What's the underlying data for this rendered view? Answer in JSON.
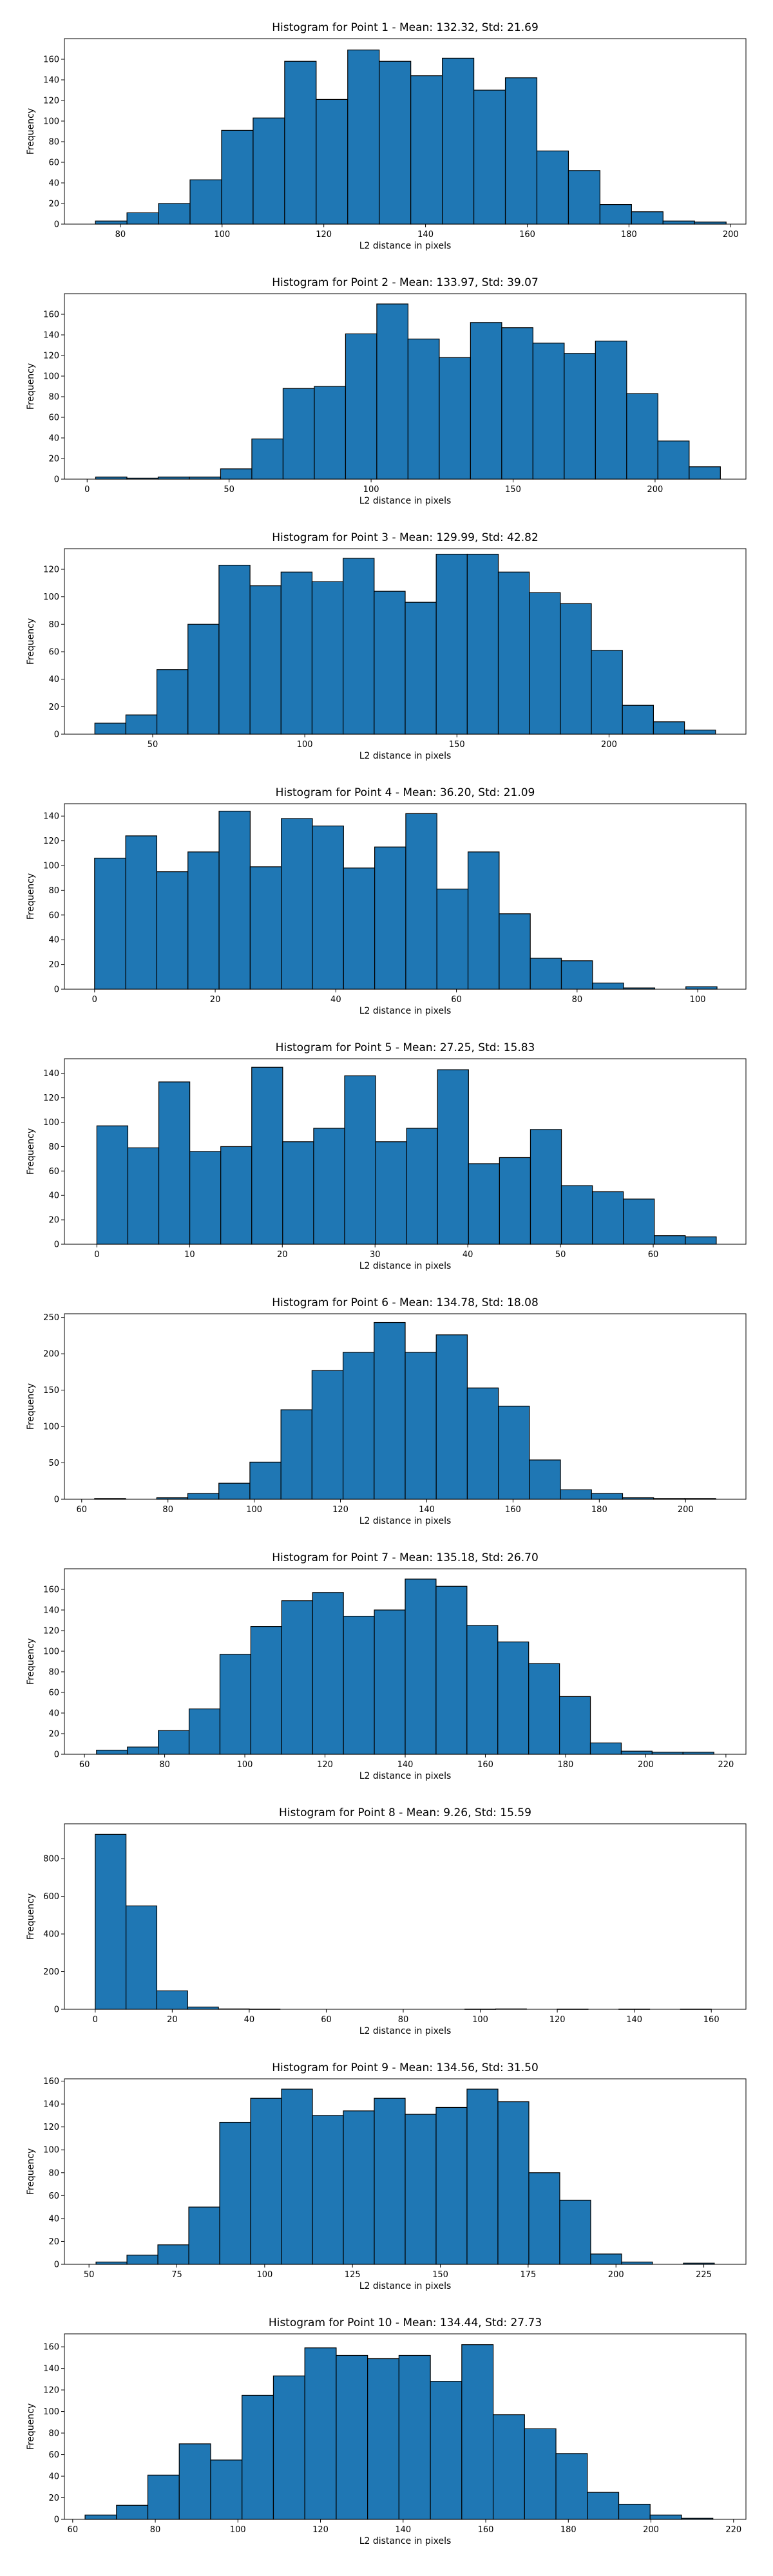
{
  "chart_data": [
    {
      "type": "bar",
      "title": "Histogram for Point 1 - Mean: 132.32, Std: 21.69",
      "xlabel": "L2 distance in pixels",
      "ylabel": "Frequency",
      "bar_color": "#1f77b4",
      "edge_color": "#000000",
      "xlim": [
        69,
        203
      ],
      "ylim": [
        0,
        180
      ],
      "xticks": [
        80,
        100,
        120,
        140,
        160,
        180,
        200
      ],
      "yticks": [
        0,
        20,
        40,
        60,
        80,
        100,
        120,
        140,
        160
      ],
      "bins": [
        [
          75.1,
          81.3,
          3
        ],
        [
          81.3,
          87.5,
          11
        ],
        [
          87.5,
          93.7,
          20
        ],
        [
          93.7,
          99.9,
          43
        ],
        [
          99.9,
          106.1,
          91
        ],
        [
          106.1,
          112.3,
          103
        ],
        [
          112.3,
          118.5,
          158
        ],
        [
          118.5,
          124.7,
          121
        ],
        [
          124.7,
          130.9,
          169
        ],
        [
          130.9,
          137.1,
          158
        ],
        [
          137.1,
          143.3,
          144
        ],
        [
          143.3,
          149.5,
          161
        ],
        [
          149.5,
          155.7,
          130
        ],
        [
          155.7,
          161.9,
          142
        ],
        [
          161.9,
          168.1,
          71
        ],
        [
          168.1,
          174.3,
          52
        ],
        [
          174.3,
          180.5,
          19
        ],
        [
          180.5,
          186.7,
          12
        ],
        [
          186.7,
          192.9,
          3
        ],
        [
          192.9,
          199.1,
          2
        ]
      ]
    },
    {
      "type": "bar",
      "title": "Histogram for Point 2 - Mean: 133.97, Std: 39.07",
      "xlabel": "L2 distance in pixels",
      "ylabel": "Frequency",
      "bar_color": "#1f77b4",
      "edge_color": "#000000",
      "xlim": [
        -8,
        232
      ],
      "ylim": [
        0,
        180
      ],
      "xticks": [
        0,
        50,
        100,
        150,
        200
      ],
      "yticks": [
        0,
        20,
        40,
        60,
        80,
        100,
        120,
        140,
        160
      ],
      "bins": [
        [
          3,
          14,
          2
        ],
        [
          14,
          25,
          1
        ],
        [
          25,
          36,
          2
        ],
        [
          36,
          47,
          2
        ],
        [
          47,
          58,
          10
        ],
        [
          58,
          69,
          39
        ],
        [
          69,
          80,
          88
        ],
        [
          80,
          91,
          90
        ],
        [
          91,
          102,
          141
        ],
        [
          102,
          113,
          170
        ],
        [
          113,
          124,
          136
        ],
        [
          124,
          135,
          118
        ],
        [
          135,
          146,
          152
        ],
        [
          146,
          157,
          147
        ],
        [
          157,
          168,
          132
        ],
        [
          168,
          179,
          122
        ],
        [
          179,
          190,
          134
        ],
        [
          190,
          201,
          83
        ],
        [
          201,
          212,
          37
        ],
        [
          212,
          223,
          12
        ]
      ]
    },
    {
      "type": "bar",
      "title": "Histogram for Point 3 - Mean: 129.99, Std: 42.82",
      "xlabel": "L2 distance in pixels",
      "ylabel": "Frequency",
      "bar_color": "#1f77b4",
      "edge_color": "#000000",
      "xlim": [
        21,
        245
      ],
      "ylim": [
        0,
        135
      ],
      "xticks": [
        50,
        100,
        150,
        200
      ],
      "yticks": [
        0,
        20,
        40,
        60,
        80,
        100,
        120
      ],
      "bins": [
        [
          31,
          41.2,
          8
        ],
        [
          41.2,
          51.4,
          14
        ],
        [
          51.4,
          61.6,
          47
        ],
        [
          61.6,
          71.8,
          80
        ],
        [
          71.8,
          82,
          123
        ],
        [
          82,
          92.2,
          108
        ],
        [
          92.2,
          102.4,
          118
        ],
        [
          102.4,
          112.6,
          111
        ],
        [
          112.6,
          122.8,
          128
        ],
        [
          122.8,
          133,
          104
        ],
        [
          133,
          143.2,
          96
        ],
        [
          143.2,
          153.4,
          131
        ],
        [
          153.4,
          163.6,
          131
        ],
        [
          163.6,
          173.8,
          118
        ],
        [
          173.8,
          184,
          103
        ],
        [
          184,
          194.2,
          95
        ],
        [
          194.2,
          204.4,
          61
        ],
        [
          204.4,
          214.6,
          21
        ],
        [
          214.6,
          224.8,
          9
        ],
        [
          224.8,
          235,
          3
        ]
      ]
    },
    {
      "type": "bar",
      "title": "Histogram for Point 4 - Mean: 36.20, Std: 21.09",
      "xlabel": "L2 distance in pixels",
      "ylabel": "Frequency",
      "bar_color": "#1f77b4",
      "edge_color": "#000000",
      "xlim": [
        -5,
        108
      ],
      "ylim": [
        0,
        150
      ],
      "xticks": [
        0,
        20,
        40,
        60,
        80,
        100
      ],
      "yticks": [
        0,
        20,
        40,
        60,
        80,
        100,
        120,
        140
      ],
      "bins": [
        [
          0,
          5.16,
          106
        ],
        [
          5.16,
          10.32,
          124
        ],
        [
          10.32,
          15.48,
          95
        ],
        [
          15.48,
          20.64,
          111
        ],
        [
          20.64,
          25.8,
          144
        ],
        [
          25.8,
          30.96,
          99
        ],
        [
          30.96,
          36.12,
          138
        ],
        [
          36.12,
          41.28,
          132
        ],
        [
          41.28,
          46.44,
          98
        ],
        [
          46.44,
          51.6,
          115
        ],
        [
          51.6,
          56.76,
          142
        ],
        [
          56.76,
          61.92,
          81
        ],
        [
          61.92,
          67.08,
          111
        ],
        [
          67.08,
          72.24,
          61
        ],
        [
          72.24,
          77.4,
          25
        ],
        [
          77.4,
          82.56,
          23
        ],
        [
          82.56,
          87.72,
          5
        ],
        [
          87.72,
          92.88,
          1
        ],
        [
          92.88,
          98.04,
          0
        ],
        [
          98.04,
          103.2,
          2
        ]
      ]
    },
    {
      "type": "bar",
      "title": "Histogram for Point 5 - Mean: 27.25, Std: 15.83",
      "xlabel": "L2 distance in pixels",
      "ylabel": "Frequency",
      "bar_color": "#1f77b4",
      "edge_color": "#000000",
      "xlim": [
        -3.5,
        70
      ],
      "ylim": [
        0,
        152
      ],
      "xticks": [
        0,
        10,
        20,
        30,
        40,
        50,
        60
      ],
      "yticks": [
        0,
        20,
        40,
        60,
        80,
        100,
        120,
        140
      ],
      "bins": [
        [
          0,
          3.34,
          97
        ],
        [
          3.34,
          6.68,
          79
        ],
        [
          6.68,
          10.02,
          133
        ],
        [
          10.02,
          13.36,
          76
        ],
        [
          13.36,
          16.7,
          80
        ],
        [
          16.7,
          20.04,
          145
        ],
        [
          20.04,
          23.38,
          84
        ],
        [
          23.38,
          26.72,
          95
        ],
        [
          26.72,
          30.06,
          138
        ],
        [
          30.06,
          33.4,
          84
        ],
        [
          33.4,
          36.74,
          95
        ],
        [
          36.74,
          40.08,
          143
        ],
        [
          40.08,
          43.42,
          66
        ],
        [
          43.42,
          46.76,
          71
        ],
        [
          46.76,
          50.1,
          94
        ],
        [
          50.1,
          53.44,
          48
        ],
        [
          53.44,
          56.78,
          43
        ],
        [
          56.78,
          60.12,
          37
        ],
        [
          60.12,
          63.46,
          7
        ],
        [
          63.46,
          66.8,
          6
        ]
      ]
    },
    {
      "type": "bar",
      "title": "Histogram for Point 6 - Mean: 134.78, Std: 18.08",
      "xlabel": "L2 distance in pixels",
      "ylabel": "Frequency",
      "bar_color": "#1f77b4",
      "edge_color": "#000000",
      "xlim": [
        56,
        214
      ],
      "ylim": [
        0,
        255
      ],
      "xticks": [
        60,
        80,
        100,
        120,
        140,
        160,
        180,
        200
      ],
      "yticks": [
        0,
        50,
        100,
        150,
        200,
        250
      ],
      "bins": [
        [
          63,
          70.2,
          1
        ],
        [
          70.2,
          77.4,
          0
        ],
        [
          77.4,
          84.6,
          2
        ],
        [
          84.6,
          91.8,
          8
        ],
        [
          91.8,
          99,
          22
        ],
        [
          99,
          106.2,
          51
        ],
        [
          106.2,
          113.4,
          123
        ],
        [
          113.4,
          120.6,
          177
        ],
        [
          120.6,
          127.8,
          202
        ],
        [
          127.8,
          135,
          243
        ],
        [
          135,
          142.2,
          202
        ],
        [
          142.2,
          149.4,
          226
        ],
        [
          149.4,
          156.6,
          153
        ],
        [
          156.6,
          163.8,
          128
        ],
        [
          163.8,
          171,
          54
        ],
        [
          171,
          178.2,
          13
        ],
        [
          178.2,
          185.4,
          8
        ],
        [
          185.4,
          192.6,
          2
        ],
        [
          192.6,
          199.8,
          1
        ],
        [
          199.8,
          207,
          1
        ]
      ]
    },
    {
      "type": "bar",
      "title": "Histogram for Point 7 - Mean: 135.18, Std: 26.70",
      "xlabel": "L2 distance in pixels",
      "ylabel": "Frequency",
      "bar_color": "#1f77b4",
      "edge_color": "#000000",
      "xlim": [
        55,
        225
      ],
      "ylim": [
        0,
        180
      ],
      "xticks": [
        60,
        80,
        100,
        120,
        140,
        160,
        180,
        200,
        220
      ],
      "yticks": [
        0,
        20,
        40,
        60,
        80,
        100,
        120,
        140,
        160
      ],
      "bins": [
        [
          63,
          70.7,
          4
        ],
        [
          70.7,
          78.4,
          7
        ],
        [
          78.4,
          86.1,
          23
        ],
        [
          86.1,
          93.8,
          44
        ],
        [
          93.8,
          101.5,
          97
        ],
        [
          101.5,
          109.2,
          124
        ],
        [
          109.2,
          116.9,
          149
        ],
        [
          116.9,
          124.6,
          157
        ],
        [
          124.6,
          132.3,
          134
        ],
        [
          132.3,
          140,
          140
        ],
        [
          140,
          147.7,
          170
        ],
        [
          147.7,
          155.4,
          163
        ],
        [
          155.4,
          163.1,
          125
        ],
        [
          163.1,
          170.8,
          109
        ],
        [
          170.8,
          178.5,
          88
        ],
        [
          178.5,
          186.2,
          56
        ],
        [
          186.2,
          193.9,
          11
        ],
        [
          193.9,
          201.6,
          3
        ],
        [
          201.6,
          209.3,
          2
        ],
        [
          209.3,
          217,
          2
        ]
      ]
    },
    {
      "type": "bar",
      "title": "Histogram for Point 8 - Mean: 9.26, Std: 15.59",
      "xlabel": "L2 distance in pixels",
      "ylabel": "Frequency",
      "bar_color": "#1f77b4",
      "edge_color": "#000000",
      "xlim": [
        -8,
        169
      ],
      "ylim": [
        0,
        985
      ],
      "xticks": [
        0,
        20,
        40,
        60,
        80,
        100,
        120,
        140,
        160
      ],
      "yticks": [
        0,
        200,
        400,
        600,
        800
      ],
      "bins": [
        [
          0,
          8,
          929
        ],
        [
          8,
          16,
          549
        ],
        [
          16,
          24,
          98
        ],
        [
          24,
          32,
          12
        ],
        [
          32,
          40,
          2
        ],
        [
          40,
          48,
          1
        ],
        [
          48,
          56,
          0
        ],
        [
          56,
          64,
          0
        ],
        [
          64,
          72,
          0
        ],
        [
          72,
          80,
          0
        ],
        [
          80,
          88,
          0
        ],
        [
          88,
          96,
          0
        ],
        [
          96,
          104,
          1
        ],
        [
          104,
          112,
          2
        ],
        [
          112,
          120,
          0
        ],
        [
          120,
          128,
          1
        ],
        [
          128,
          136,
          0
        ],
        [
          136,
          144,
          1
        ],
        [
          144,
          152,
          0
        ],
        [
          152,
          160,
          1
        ]
      ]
    },
    {
      "type": "bar",
      "title": "Histogram for Point 9 - Mean: 134.56, Std: 31.50",
      "xlabel": "L2 distance in pixels",
      "ylabel": "Frequency",
      "bar_color": "#1f77b4",
      "edge_color": "#000000",
      "xlim": [
        43,
        237
      ],
      "ylim": [
        0,
        162
      ],
      "xticks": [
        50,
        75,
        100,
        125,
        150,
        175,
        200,
        225
      ],
      "yticks": [
        0,
        20,
        40,
        60,
        80,
        100,
        120,
        140,
        160
      ],
      "bins": [
        [
          52,
          60.8,
          2
        ],
        [
          60.8,
          69.6,
          8
        ],
        [
          69.6,
          78.4,
          17
        ],
        [
          78.4,
          87.2,
          50
        ],
        [
          87.2,
          96,
          124
        ],
        [
          96,
          104.8,
          145
        ],
        [
          104.8,
          113.6,
          153
        ],
        [
          113.6,
          122.4,
          130
        ],
        [
          122.4,
          131.2,
          134
        ],
        [
          131.2,
          140,
          145
        ],
        [
          140,
          148.8,
          131
        ],
        [
          148.8,
          157.6,
          137
        ],
        [
          157.6,
          166.4,
          153
        ],
        [
          166.4,
          175.2,
          142
        ],
        [
          175.2,
          184,
          80
        ],
        [
          184,
          192.8,
          56
        ],
        [
          192.8,
          201.6,
          9
        ],
        [
          201.6,
          210.4,
          2
        ],
        [
          210.4,
          219.2,
          0
        ],
        [
          219.2,
          228,
          1
        ]
      ]
    },
    {
      "type": "bar",
      "title": "Histogram for Point 10 - Mean: 134.44, Std: 27.73",
      "xlabel": "L2 distance in pixels",
      "ylabel": "Frequency",
      "bar_color": "#1f77b4",
      "edge_color": "#000000",
      "xlim": [
        58,
        223
      ],
      "ylim": [
        0,
        172
      ],
      "xticks": [
        60,
        80,
        100,
        120,
        140,
        160,
        180,
        200,
        220
      ],
      "yticks": [
        0,
        20,
        40,
        60,
        80,
        100,
        120,
        140,
        160
      ],
      "bins": [
        [
          63,
          70.6,
          4
        ],
        [
          70.6,
          78.2,
          13
        ],
        [
          78.2,
          85.8,
          41
        ],
        [
          85.8,
          93.4,
          70
        ],
        [
          93.4,
          101,
          55
        ],
        [
          101,
          108.6,
          115
        ],
        [
          108.6,
          116.2,
          133
        ],
        [
          116.2,
          123.8,
          159
        ],
        [
          123.8,
          131.4,
          152
        ],
        [
          131.4,
          139,
          149
        ],
        [
          139,
          146.6,
          152
        ],
        [
          146.6,
          154.2,
          128
        ],
        [
          154.2,
          161.8,
          162
        ],
        [
          161.8,
          169.4,
          97
        ],
        [
          169.4,
          177,
          84
        ],
        [
          177,
          184.6,
          61
        ],
        [
          184.6,
          192.2,
          25
        ],
        [
          192.2,
          199.8,
          14
        ],
        [
          199.8,
          207.4,
          4
        ],
        [
          207.4,
          215,
          1
        ]
      ]
    }
  ]
}
